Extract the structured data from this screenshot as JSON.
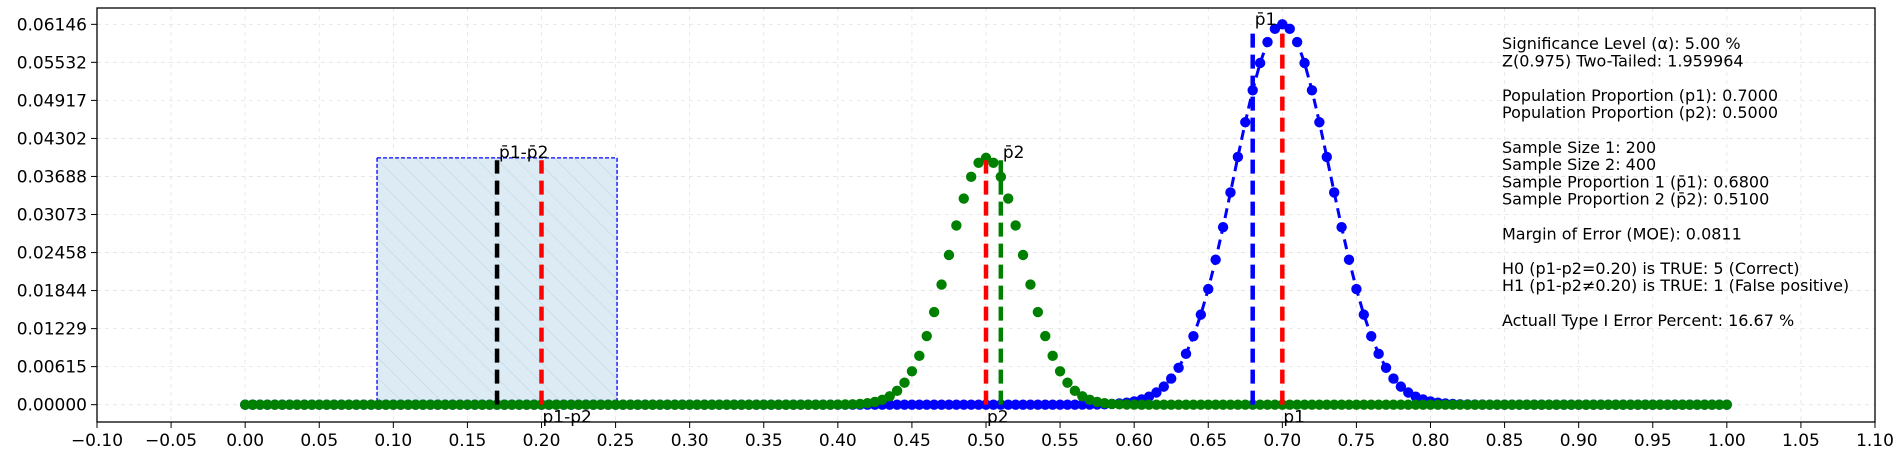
{
  "chart_data": {
    "type": "scatter",
    "xlim": [
      -0.1,
      1.1
    ],
    "ylim": [
      -0.0028,
      0.0641
    ],
    "x_ticks": [
      "−0.10",
      "−0.05",
      "0.00",
      "0.05",
      "0.10",
      "0.15",
      "0.20",
      "0.25",
      "0.30",
      "0.35",
      "0.40",
      "0.45",
      "0.50",
      "0.55",
      "0.60",
      "0.65",
      "0.70",
      "0.75",
      "0.80",
      "0.85",
      "0.90",
      "0.95",
      "1.00",
      "1.05",
      "1.10"
    ],
    "x_tick_values": [
      -0.1,
      -0.05,
      0.0,
      0.05,
      0.1,
      0.15,
      0.2,
      0.25,
      0.3,
      0.35,
      0.4,
      0.45,
      0.5,
      0.55,
      0.6,
      0.65,
      0.7,
      0.75,
      0.8,
      0.85,
      0.9,
      0.95,
      1.0,
      1.05,
      1.1
    ],
    "y_ticks": [
      "0.00000",
      "0.00615",
      "0.01229",
      "0.01844",
      "0.02458",
      "0.03073",
      "0.03688",
      "0.04302",
      "0.04917",
      "0.05532",
      "0.06146"
    ],
    "y_tick_values": [
      0.0,
      0.00615,
      0.01229,
      0.01844,
      0.02458,
      0.03073,
      0.03688,
      0.04302,
      0.04917,
      0.05532,
      0.06146
    ],
    "grid": true,
    "series": [
      {
        "color": "#0000ff",
        "mean": 0.7,
        "sd": 0.0324,
        "n_points": 201,
        "x_range": [
          0,
          1
        ],
        "peak": 0.06146,
        "style": "dashed-line-with-dots"
      },
      {
        "color": "#008000",
        "mean": 0.5,
        "sd": 0.025,
        "n_points": 201,
        "x_range": [
          0,
          1
        ],
        "peak": 0.03988,
        "style": "dots"
      }
    ],
    "confidence_interval": {
      "low": 0.089,
      "high": 0.251,
      "top": 0.03988,
      "fill": "#d9eaf3",
      "edge": "#0000ff"
    },
    "vlines": [
      {
        "x": 0.17,
        "height": 0.0395,
        "color": "#000000",
        "label": "p̄1-p̄2",
        "label_pos": "top"
      },
      {
        "x": 0.2,
        "height": 0.0395,
        "color": "#ff0000",
        "label": "p1-p2",
        "label_pos": "bottom"
      },
      {
        "x": 0.5,
        "height": 0.0395,
        "color": "#ff0000",
        "label": "p2",
        "label_pos": "bottom"
      },
      {
        "x": 0.51,
        "height": 0.0395,
        "color": "#008000",
        "label": "p̄2",
        "label_pos": "top"
      },
      {
        "x": 0.68,
        "height": 0.061,
        "color": "#0000ff",
        "label": "p̄1",
        "label_pos": "top"
      },
      {
        "x": 0.7,
        "height": 0.061,
        "color": "#ff0000",
        "label": "p1",
        "label_pos": "bottom"
      }
    ],
    "info_lines": [
      "Significance Level (α): 5.00 %",
      "Z(0.975) Two-Tailed: 1.959964",
      "",
      "Population Proportion (p1): 0.7000",
      "Population Proportion (p2): 0.5000",
      "",
      "Sample Size 1: 200",
      "Sample Size 2: 400",
      "Sample Proportion 1 (p̄1): 0.6800",
      "Sample Proportion 2 (p̄2): 0.5100",
      "",
      "Margin of Error (MOE): 0.0811",
      "",
      "H0 (p1-p2=0.20) is TRUE: 5 (Correct)",
      "H1 (p1-p2≠0.20) is TRUE: 1 (False positive)",
      "",
      "Actuall Type I Error Percent: 16.67 %"
    ]
  }
}
